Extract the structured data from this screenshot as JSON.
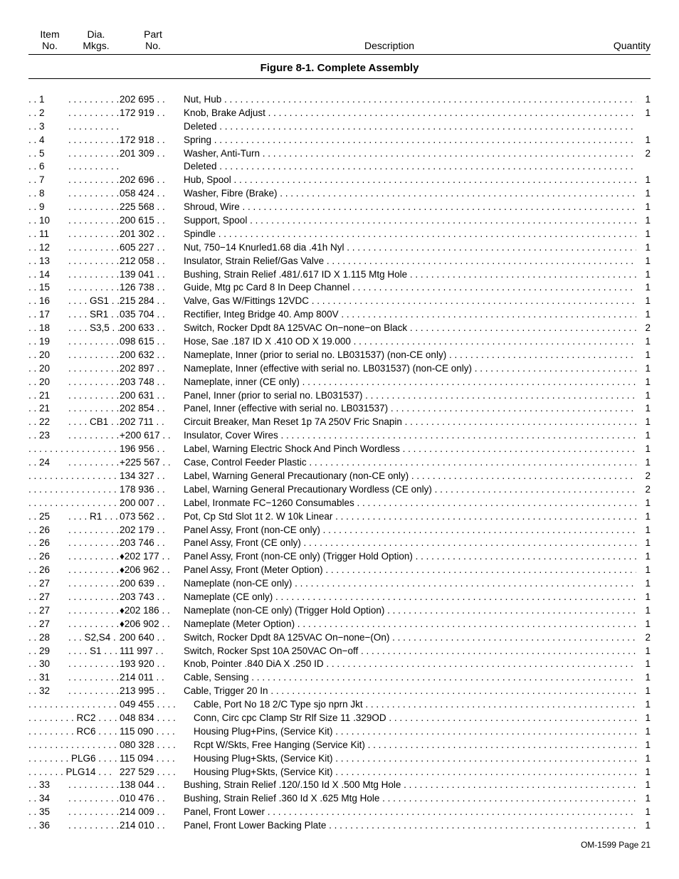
{
  "header": {
    "item_no": "Item\nNo.",
    "dia_mkgs": "Dia.\nMkgs.",
    "part_no": "Part\nNo.",
    "description": "Description",
    "quantity": "Quantity"
  },
  "figure_title": "Figure 8-1. Complete Assembly",
  "footer": "OM-1599 Page 21",
  "rows": [
    {
      "item": ". .  1",
      "dia": ". . . . . . . . . . . . .",
      "part": "202 695 . .",
      "desc": "Nut, Hub",
      "qty": "1",
      "indent": false
    },
    {
      "item": ". .  2",
      "dia": ". . . . . . . . . . . . .",
      "part": "172 919 . .",
      "desc": "Knob, Brake Adjust",
      "qty": "1",
      "indent": false
    },
    {
      "item": ". .  3",
      "dia": ". . . . . . . . . . . . . . . . . . . . . . . . .",
      "part": "",
      "desc": "Deleted",
      "qty": "",
      "indent": false
    },
    {
      "item": ". .  4",
      "dia": ". . . . . . . . . . . . .",
      "part": "172 918 . .",
      "desc": "Spring",
      "qty": "1",
      "indent": false
    },
    {
      "item": ". .  5",
      "dia": ". . . . . . . . . . . . .",
      "part": "201 309 . .",
      "desc": "Washer, Anti-Turn",
      "qty": "2",
      "indent": false
    },
    {
      "item": ". .  6",
      "dia": ". . . . . . . . . . . . . . . . . . . . . . . . .",
      "part": "",
      "desc": "Deleted",
      "qty": "",
      "indent": false
    },
    {
      "item": ". .  7",
      "dia": ". . . . . . . . . . . . .",
      "part": "202 696 . .",
      "desc": "Hub, Spool",
      "qty": "1",
      "indent": false
    },
    {
      "item": ". .  8",
      "dia": ". . . . . . . . . . . . .",
      "part": "058 424 . .",
      "desc": "Washer, Fibre (Brake)",
      "qty": "1",
      "indent": false
    },
    {
      "item": ". .  9",
      "dia": ". . . . . . . . . . . . .",
      "part": "225 568 . .",
      "desc": "Shroud, Wire",
      "qty": "1",
      "indent": false
    },
    {
      "item": ". . 10",
      "dia": ". . . . . . . . . . . . .",
      "part": "200 615 . .",
      "desc": "Support, Spool",
      "qty": "1",
      "indent": false
    },
    {
      "item": ". . 11",
      "dia": " . . . . . . . . . . . .",
      "part": "201 302 . .",
      "desc": "Spindle",
      "qty": "1",
      "indent": false
    },
    {
      "item": ". . 12",
      "dia": ". . . . . . . . . . . . .",
      "part": "605 227 . .",
      "desc": "Nut,  750−14 Knurled1.68 dia .41h Nyl",
      "qty": "1",
      "indent": false
    },
    {
      "item": ". . 13",
      "dia": ". . . . . . . . . . . . .",
      "part": "212 058 . .",
      "desc": "Insulator, Strain Relief/Gas Valve",
      "qty": "1",
      "indent": false
    },
    {
      "item": ". . 14",
      "dia": ". . . . . . . . . . . . .",
      "part": "139 041 . .",
      "desc": "Bushing, Strain Relief .481/.617 ID X 1.115 Mtg Hole",
      "qty": "1",
      "indent": false
    },
    {
      "item": ". . 15",
      "dia": ". . . . . . . . . . . . .",
      "part": "126 738 . .",
      "desc": "Guide, Mtg pc Card 8 In Deep Channel",
      "qty": "1",
      "indent": false
    },
    {
      "item": ". . 16",
      "dia": ". . . . GS1 . . . .",
      "part": "215 284 . .",
      "desc": "Valve, Gas W/Fittings 12VDC",
      "qty": "1",
      "indent": false
    },
    {
      "item": ". . 17",
      "dia": ". . . . SR1 . . . .",
      "part": "035 704 . .",
      "desc": "Rectifier, Integ Bridge 40. Amp 800V",
      "qty": "1",
      "indent": false
    },
    {
      "item": ". . 18",
      "dia": ". . . . S3,5 . . . .",
      "part": "200 633 . .",
      "desc": "Switch, Rocker Dpdt 8A 125VAC On−none−on Black",
      "qty": "2",
      "indent": false
    },
    {
      "item": ". . 19",
      "dia": ". . . . . . . . . . . . .",
      "part": "098 615 . .",
      "desc": "Hose, Sae .187 ID X .410 OD X 19.000",
      "qty": "1",
      "indent": false
    },
    {
      "item": ". . 20",
      "dia": ". . . . . . . . . . . . .",
      "part": "200 632 . .",
      "desc": "Nameplate, Inner (prior to serial no. LB031537) (non-CE only)",
      "qty": "1",
      "indent": false,
      "short": true
    },
    {
      "item": ". . 20",
      "dia": ". . . . . . . . . . . . .",
      "part": "202 897 . .",
      "desc": "Nameplate, Inner (effective with serial no. LB031537) (non-CE only)",
      "qty": "1",
      "indent": false,
      "short": true
    },
    {
      "item": ". . 20",
      "dia": ". . . . . . . . . . . . .",
      "part": "203 748 . .",
      "desc": "Nameplate, inner (CE only)",
      "qty": "1",
      "indent": false
    },
    {
      "item": ". . 21",
      "dia": ". . . . . . . . . . . . .",
      "part": "200 631 . .",
      "desc": "Panel, Inner (prior to serial no. LB031537)",
      "qty": "1",
      "indent": false
    },
    {
      "item": ". . 21",
      "dia": ". . . . . . . . . . . . .",
      "part": "202 854 . .",
      "desc": "Panel, Inner (effective with serial no. LB031537)",
      "qty": "1",
      "indent": false
    },
    {
      "item": ". . 22",
      "dia": ". . . . CB1 . . . . .",
      "part": "202 711 . .",
      "desc": "Circuit Breaker, Man Reset 1p 7A 250V Fric Snapin",
      "qty": "1",
      "indent": false
    },
    {
      "item": ". . 23",
      "dia": ". . . . . . . . . . . .",
      "part": "+200 617 . .",
      "desc": "Insulator, Cover Wires",
      "qty": "1",
      "indent": false
    },
    {
      "item": ". . . . . . . . . . . . . . . . . . . . .",
      "dia": "",
      "part": "196 956 . .",
      "desc": "Label, Warning Electric Shock And Pinch Wordless",
      "qty": "1",
      "indent": false,
      "wide": true
    },
    {
      "item": ". . 24",
      "dia": ". . . . . . . . . . . .",
      "part": "+225 567 . .",
      "desc": "Case, Control Feeder Plastic",
      "qty": "1",
      "indent": false
    },
    {
      "item": ". . . . . . . . . . . . . . . . . . . . .",
      "dia": "",
      "part": "134 327 . .",
      "desc": "Label, Warning General Precautionary (non-CE only)",
      "qty": "2",
      "indent": false,
      "wide": true
    },
    {
      "item": ". . . . . . . . . . . . . . . . . . . . .",
      "dia": "",
      "part": "178 936 . .",
      "desc": "Label, Warning General Precautionary Wordless (CE only)",
      "qty": "2",
      "indent": false,
      "wide": true
    },
    {
      "item": ". . . . . . . . . . . . . . . . . . . . .",
      "dia": "",
      "part": "200 007 . .",
      "desc": "Label, Ironmate FC−1260 Consumables",
      "qty": "1",
      "indent": false,
      "wide": true
    },
    {
      "item": ". . 25",
      "dia": ". . . .  R1 . . . . .",
      "part": "073 562 . .",
      "desc": "Pot, Cp Std Slot 1t 2. W 10k Linear",
      "qty": "1",
      "indent": false
    },
    {
      "item": ". . 26",
      "dia": ". . . . . . . . . . . . .",
      "part": "202 179 . .",
      "desc": "Panel Assy, Front (non-CE only)",
      "qty": "1",
      "indent": false
    },
    {
      "item": ". . 26",
      "dia": ". . . . . . . . . . . . .",
      "part": "203 746 . .",
      "desc": "Panel Assy, Front (CE only)",
      "qty": "1",
      "indent": false
    },
    {
      "item": ". . 26",
      "dia": ". . . . . . . . . . . .",
      "part": "♦202 177 . .",
      "desc": "Panel Assy, Front (non-CE only) (Trigger Hold Option)",
      "qty": "1",
      "indent": false
    },
    {
      "item": ". . 26",
      "dia": ". . . . . . . . . . . .",
      "part": "♦206 962 . .",
      "desc": "Panel Assy, Front (Meter Option)",
      "qty": "1",
      "indent": false
    },
    {
      "item": ". . 27",
      "dia": ". . . . . . . . . . . . .",
      "part": "200 639 . .",
      "desc": "Nameplate (non-CE only)",
      "qty": "1",
      "indent": false
    },
    {
      "item": ". . 27",
      "dia": ". . . . . . . . . . . . .",
      "part": "203 743 . .",
      "desc": "Nameplate (CE only)",
      "qty": "1",
      "indent": false
    },
    {
      "item": ". . 27",
      "dia": ". . . . . . . . . . . .",
      "part": "♦202 186 . .",
      "desc": "Nameplate (non-CE only) (Trigger Hold Option)",
      "qty": "1",
      "indent": false
    },
    {
      "item": ". . 27",
      "dia": ". . . . . . . . . . . .",
      "part": "♦206 902 . .",
      "desc": "Nameplate (Meter Option)",
      "qty": "1",
      "indent": false
    },
    {
      "item": ". . 28",
      "dia": ". . .  S2,S4  . . .",
      "part": "200 640 . .",
      "desc": "Switch, Rocker Dpdt 8A 125VAC On−none−(On)",
      "qty": "2",
      "indent": false
    },
    {
      "item": ". . 29",
      "dia": ". . . .  S1  . . . . .",
      "part": "111 997 . .",
      "desc": "Switch, Rocker Spst 10A 250VAC On−off",
      "qty": "1",
      "indent": false
    },
    {
      "item": ". . 30",
      "dia": ". . . . . . . . . . . . .",
      "part": "193 920 . .",
      "desc": "Knob, Pointer .840 DiA X .250 ID",
      "qty": "1",
      "indent": false
    },
    {
      "item": ". . 31",
      "dia": " . . . . . . . . . . . . .",
      "part": "214 011  . .",
      "desc": "Cable, Sensing",
      "qty": "1",
      "indent": false
    },
    {
      "item": ". . 32",
      "dia": ". . . . . . . . . . . . .",
      "part": "213 995 . .",
      "desc": "Cable, Trigger 20 In",
      "qty": "1",
      "indent": false
    },
    {
      "item": ". . . . . . . . . . . . . . . . . . . . .",
      "dia": "",
      "part": "049 455 . . . .",
      "desc": "Cable, Port No 18 2/C Type sjo nprn Jkt",
      "qty": "1",
      "indent": true,
      "wide": true
    },
    {
      "item": ". . . . . . . . . RC2 . . . .",
      "dia": "",
      "part": "048 834 . . . .",
      "desc": "Conn, Circ cpc Clamp Str Rlf Size 11 .329OD",
      "qty": "1",
      "indent": true,
      "wide": true
    },
    {
      "item": ". . . . . . . . . RC6 . . . . .",
      "dia": "",
      "part": "115 090 . . . .",
      "desc": "Housing Plug+Pins, (Service Kit)",
      "qty": "1",
      "indent": true,
      "wide": true
    },
    {
      "item": ". . . . . . . . . . . . . . . . . . . . .",
      "dia": "",
      "part": "080 328 . . . .",
      "desc": "Rcpt W/Skts, Free Hanging (Service Kit)",
      "qty": "1",
      "indent": true,
      "wide": true
    },
    {
      "item": ". . . . . . . . PLG6  . . . .",
      "dia": "",
      "part": "115 094 . . . .",
      "desc": "Housing Plug+Skts, (Service Kit)",
      "qty": "1",
      "indent": true,
      "wide": true
    },
    {
      "item": ". . . . . . . PLG14 . . .",
      "dia": "",
      "part": "227 529 . . . .",
      "desc": "Housing Plug+Skts, (Service Kit)",
      "qty": "1",
      "indent": true,
      "wide": true
    },
    {
      "item": ". . 33",
      "dia": ". . . . . . . . . . . . .",
      "part": "138 044 . .",
      "desc": "Bushing, Strain Relief .120/.150 Id X .500 Mtg Hole",
      "qty": "1",
      "indent": false
    },
    {
      "item": ". . 34",
      "dia": ". . . . . . . . . . . . .",
      "part": "010 476 . .",
      "desc": "Bushing, Strain Relief .360 Id X .625 Mtg Hole",
      "qty": "1",
      "indent": false
    },
    {
      "item": ". . 35",
      "dia": ". . . . . . . . . . . . .",
      "part": "214 009 . .",
      "desc": "Panel, Front Lower",
      "qty": "1",
      "indent": false
    },
    {
      "item": ". . 36",
      "dia": ". . . . . . . . . . . . .",
      "part": "214 010 . .",
      "desc": "Panel, Front Lower Backing Plate",
      "qty": "1",
      "indent": false
    }
  ]
}
